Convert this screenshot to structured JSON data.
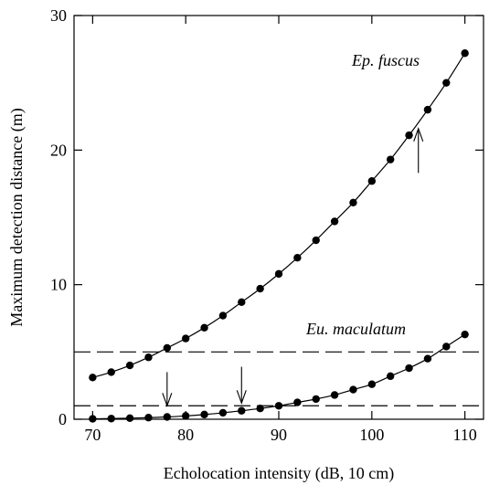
{
  "chart_data": {
    "type": "line",
    "xlabel": "Echolocation intensity (dB, 10 cm)",
    "ylabel": "Maximum detection distance (m)",
    "xlim": [
      68,
      112
    ],
    "ylim": [
      0,
      30
    ],
    "xticks": [
      70,
      80,
      90,
      100,
      110
    ],
    "yticks": [
      0,
      10,
      20,
      30
    ],
    "grid": false,
    "series": [
      {
        "name": "Ep. fuscus",
        "x": [
          70,
          72,
          74,
          76,
          78,
          80,
          82,
          84,
          86,
          88,
          90,
          92,
          94,
          96,
          98,
          100,
          102,
          104,
          106,
          108,
          110
        ],
        "y": [
          3.1,
          3.5,
          4.0,
          4.6,
          5.3,
          6.0,
          6.8,
          7.7,
          8.7,
          9.7,
          10.8,
          12.0,
          13.3,
          14.7,
          16.1,
          17.7,
          19.3,
          21.1,
          23.0,
          25.0,
          27.2
        ]
      },
      {
        "name": "Eu. maculatum",
        "x": [
          70,
          72,
          74,
          76,
          78,
          80,
          82,
          84,
          86,
          88,
          90,
          92,
          94,
          96,
          98,
          100,
          102,
          104,
          106,
          108,
          110
        ],
        "y": [
          0.03,
          0.05,
          0.08,
          0.12,
          0.17,
          0.25,
          0.35,
          0.48,
          0.63,
          0.8,
          1.0,
          1.25,
          1.5,
          1.8,
          2.2,
          2.6,
          3.2,
          3.8,
          4.5,
          5.4,
          6.3
        ]
      }
    ],
    "reference_lines": [
      {
        "y": 5,
        "style": "dashed"
      },
      {
        "y": 1,
        "style": "dashed"
      }
    ],
    "arrows": [
      {
        "x": 105,
        "from_y": 18.3,
        "to_y": 21.6,
        "direction": "up"
      },
      {
        "x": 78,
        "from_y": 3.5,
        "to_y": 1.0,
        "direction": "down"
      },
      {
        "x": 86,
        "from_y": 3.9,
        "to_y": 1.2,
        "direction": "down"
      }
    ]
  }
}
